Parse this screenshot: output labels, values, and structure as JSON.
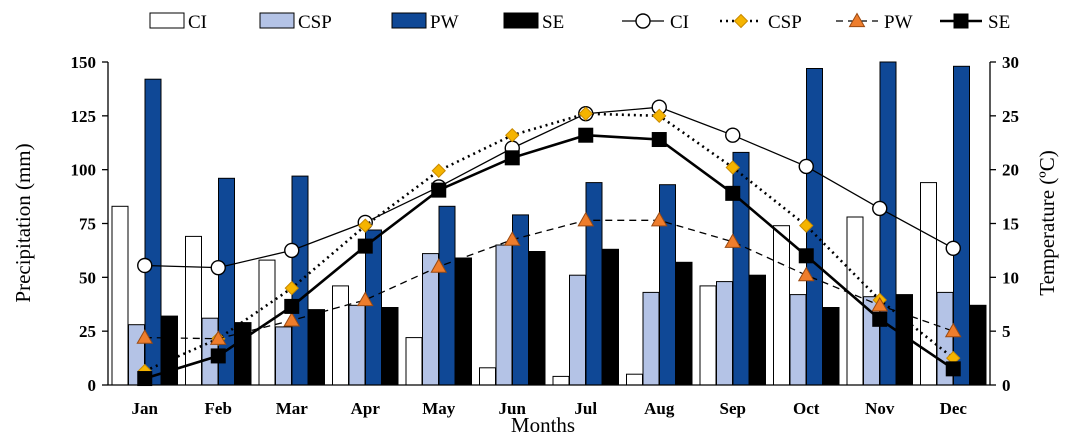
{
  "chart_data": {
    "type": "bar",
    "categories": [
      "Jan",
      "Feb",
      "Mar",
      "Apr",
      "May",
      "Jun",
      "Jul",
      "Aug",
      "Sep",
      "Oct",
      "Nov",
      "Dec"
    ],
    "xlabel": "Months",
    "ylabel": "Precipitation (mm)",
    "y2label": "Temperature (ºC)",
    "ylim": [
      0,
      150
    ],
    "y2lim": [
      0,
      30
    ],
    "yticks": [
      0,
      25,
      50,
      75,
      100,
      125,
      150
    ],
    "y2ticks": [
      0,
      5,
      10,
      15,
      20,
      25,
      30
    ],
    "grid": false,
    "legend_position": "top",
    "bar_series": [
      {
        "name": "CI",
        "axis": "left",
        "color": "#ffffff",
        "values": [
          83,
          69,
          58,
          46,
          22,
          8,
          4,
          5,
          46,
          74,
          78,
          94
        ]
      },
      {
        "name": "CSP",
        "axis": "left",
        "color": "#b4c3e6",
        "values": [
          28,
          31,
          27,
          37,
          61,
          65,
          51,
          43,
          48,
          42,
          41,
          43
        ]
      },
      {
        "name": "PW",
        "axis": "left",
        "color": "#0f4896",
        "values": [
          142,
          96,
          97,
          72,
          83,
          79,
          94,
          93,
          108,
          147,
          150,
          148
        ]
      },
      {
        "name": "SE",
        "axis": "left",
        "color": "#000000",
        "values": [
          32,
          29,
          35,
          36,
          59,
          62,
          63,
          57,
          51,
          36,
          42,
          37
        ]
      }
    ],
    "line_series": [
      {
        "name": "CI",
        "axis": "right",
        "style": "solid-thin",
        "marker": "circle",
        "values": [
          11.1,
          10.9,
          12.5,
          15.1,
          18.4,
          22,
          25.2,
          25.8,
          23.2,
          20.3,
          16.4,
          12.7
        ]
      },
      {
        "name": "CSP",
        "axis": "right",
        "style": "dotted",
        "marker": "diamond",
        "values": [
          1.3,
          4.3,
          9,
          14.8,
          19.9,
          23.2,
          25.2,
          25,
          20.2,
          14.8,
          7.9,
          2.5
        ]
      },
      {
        "name": "PW",
        "axis": "right",
        "style": "dashed",
        "marker": "triangle",
        "values": [
          4.4,
          4.3,
          6,
          7.9,
          11,
          13.5,
          15.3,
          15.3,
          13.3,
          10.2,
          7.4,
          5
        ]
      },
      {
        "name": "SE",
        "axis": "right",
        "style": "solid-thick",
        "marker": "square",
        "values": [
          0.6,
          2.7,
          7.3,
          12.9,
          18.1,
          21.1,
          23.2,
          22.8,
          17.8,
          12,
          6.1,
          1.5
        ]
      }
    ]
  }
}
